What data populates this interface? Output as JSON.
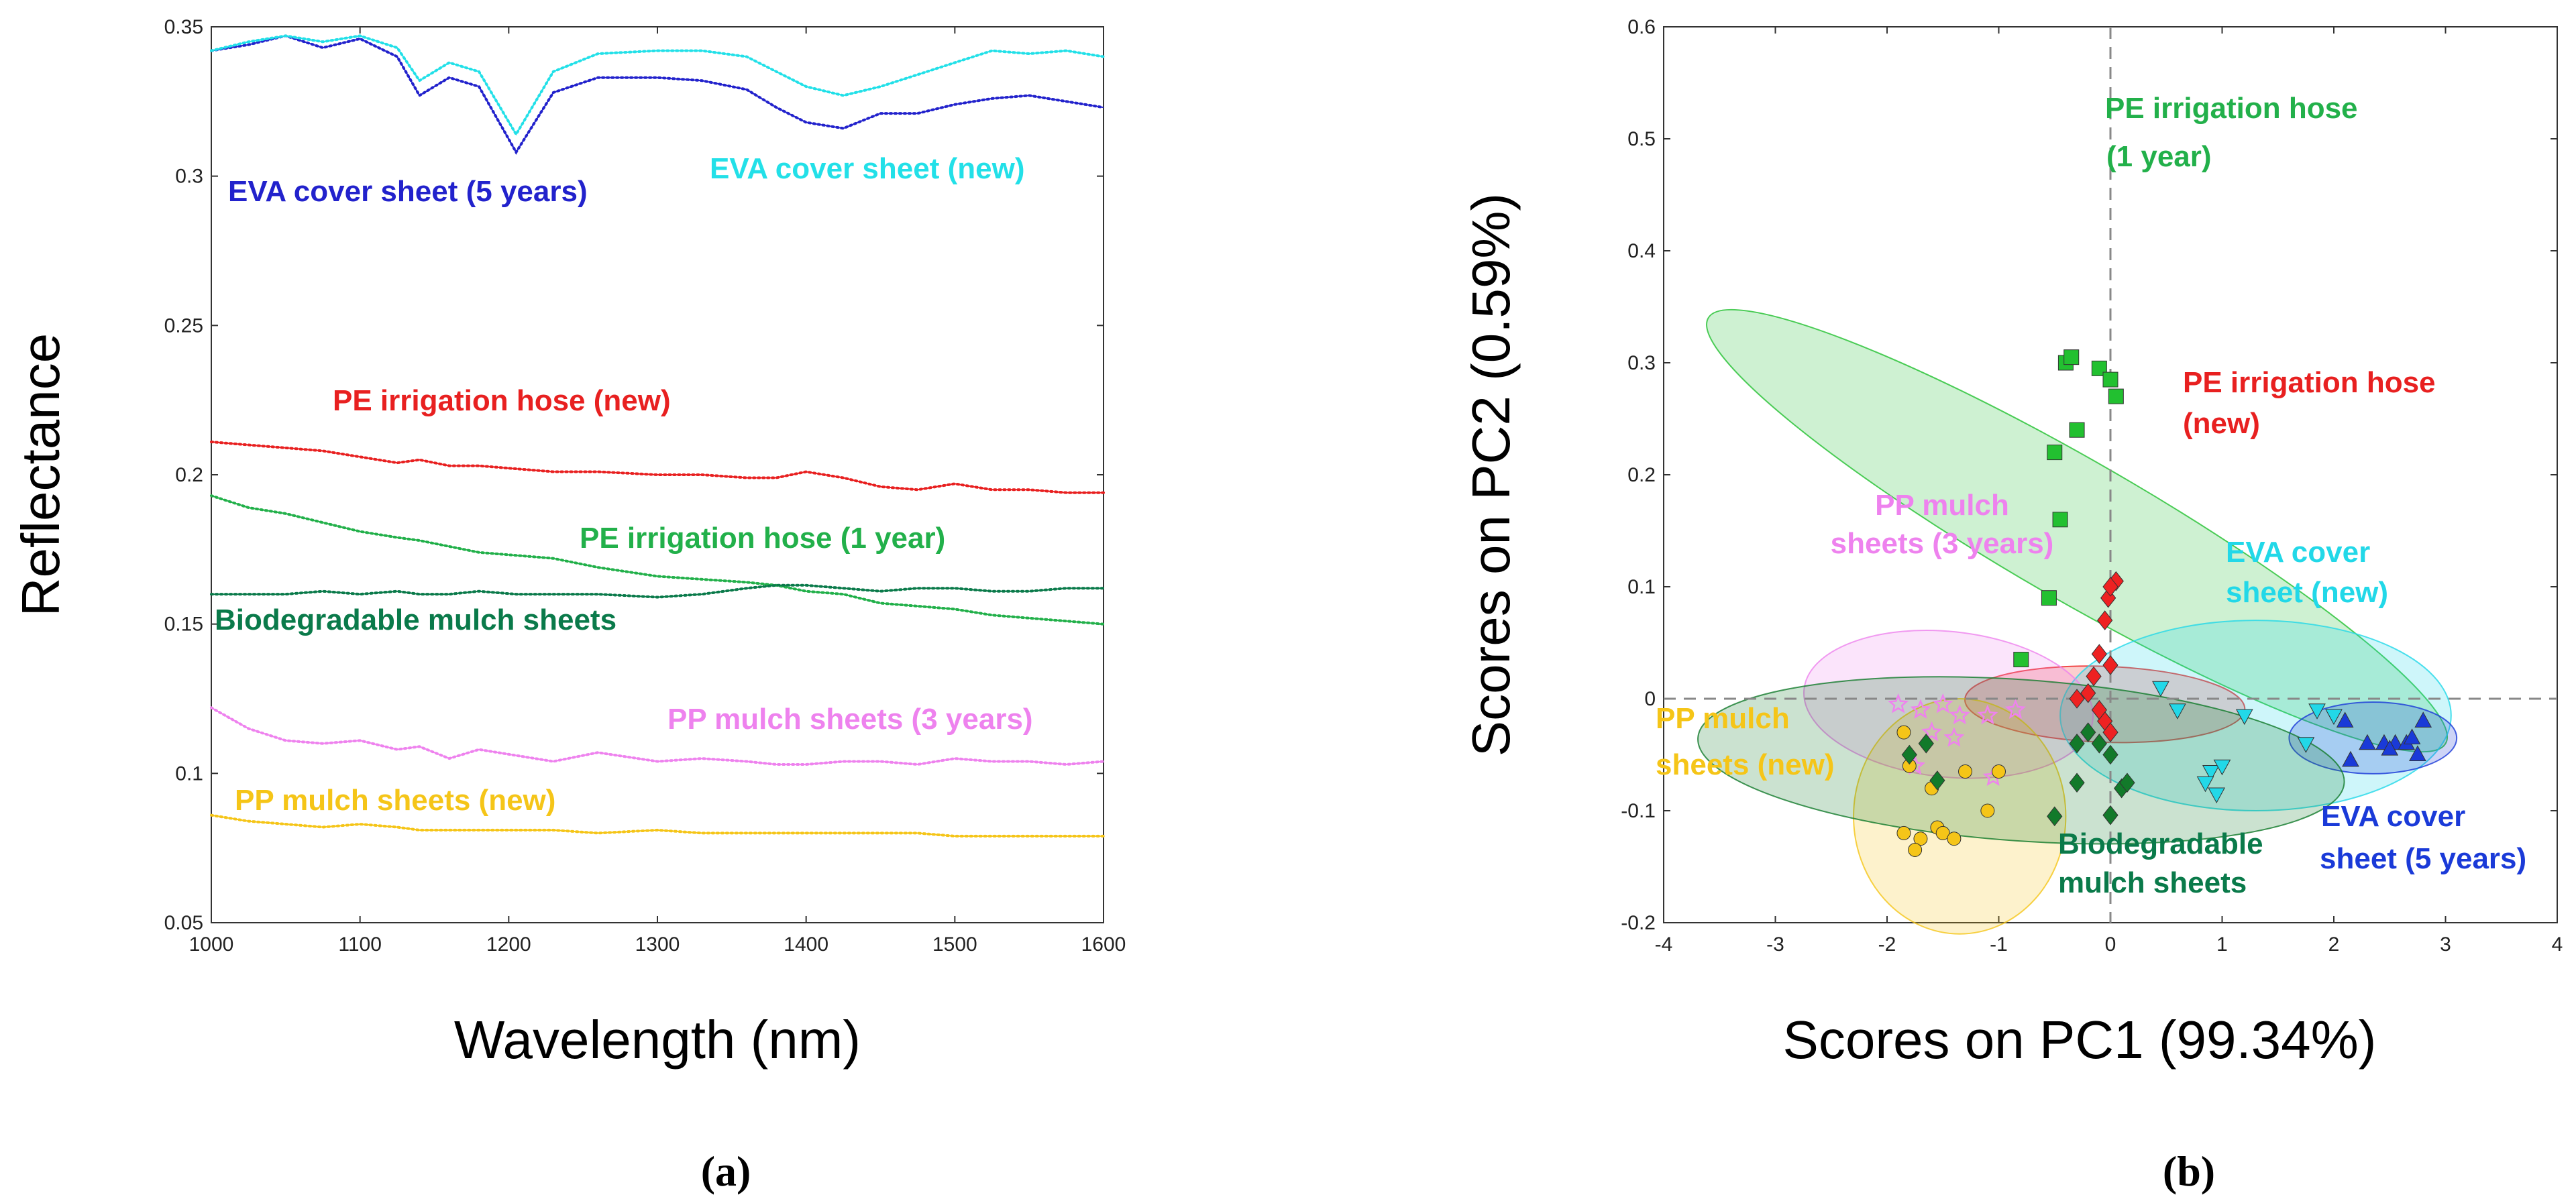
{
  "chart_data": [
    {
      "type": "line",
      "panel_label": "(a)",
      "xlabel": "Wavelength (nm)",
      "ylabel": "Reflectance",
      "xlim": [
        1000,
        1600
      ],
      "ylim": [
        0.05,
        0.35
      ],
      "xticks": [
        "1000",
        "1100",
        "1200",
        "1300",
        "1400",
        "1500",
        "1600"
      ],
      "yticks": [
        "0.05",
        "0.1",
        "0.15",
        "0.2",
        "0.25",
        "0.3",
        "0.35"
      ],
      "grid": false,
      "x": [
        1000,
        1025,
        1050,
        1075,
        1100,
        1125,
        1140,
        1160,
        1180,
        1205,
        1230,
        1260,
        1300,
        1330,
        1360,
        1380,
        1400,
        1425,
        1450,
        1475,
        1500,
        1525,
        1550,
        1575,
        1600
      ],
      "series": [
        {
          "name": "EVA cover sheet (5 years)",
          "color": "#2222cc",
          "values": [
            0.342,
            0.344,
            0.347,
            0.343,
            0.346,
            0.34,
            0.327,
            0.333,
            0.33,
            0.308,
            0.328,
            0.333,
            0.333,
            0.332,
            0.329,
            0.323,
            0.318,
            0.316,
            0.321,
            0.321,
            0.324,
            0.326,
            0.327,
            0.325,
            0.323
          ]
        },
        {
          "name": "EVA cover sheet (new)",
          "color": "#22e0e8",
          "values": [
            0.342,
            0.345,
            0.347,
            0.345,
            0.347,
            0.343,
            0.332,
            0.338,
            0.335,
            0.314,
            0.335,
            0.341,
            0.342,
            0.342,
            0.34,
            0.335,
            0.33,
            0.327,
            0.33,
            0.334,
            0.338,
            0.342,
            0.341,
            0.342,
            0.34
          ]
        },
        {
          "name": "PE irrigation hose (new)",
          "color": "#e82020",
          "values": [
            0.211,
            0.21,
            0.209,
            0.208,
            0.206,
            0.204,
            0.205,
            0.203,
            0.203,
            0.202,
            0.201,
            0.201,
            0.2,
            0.2,
            0.199,
            0.199,
            0.201,
            0.199,
            0.196,
            0.195,
            0.197,
            0.195,
            0.195,
            0.194,
            0.194
          ]
        },
        {
          "name": "PE irrigation hose (1 year)",
          "color": "#22b04a",
          "values": [
            0.193,
            0.189,
            0.187,
            0.184,
            0.181,
            0.179,
            0.178,
            0.176,
            0.174,
            0.173,
            0.172,
            0.169,
            0.166,
            0.165,
            0.164,
            0.163,
            0.161,
            0.16,
            0.157,
            0.156,
            0.155,
            0.153,
            0.152,
            0.151,
            0.15
          ]
        },
        {
          "name": "Biodegradable mulch sheets",
          "color": "#0a7a4a",
          "values": [
            0.16,
            0.16,
            0.16,
            0.161,
            0.16,
            0.161,
            0.16,
            0.16,
            0.161,
            0.16,
            0.16,
            0.16,
            0.159,
            0.16,
            0.162,
            0.163,
            0.163,
            0.162,
            0.161,
            0.162,
            0.162,
            0.161,
            0.161,
            0.162,
            0.162
          ]
        },
        {
          "name": "PP mulch sheets (3 years)",
          "color": "#ee82ee",
          "values": [
            0.122,
            0.115,
            0.111,
            0.11,
            0.111,
            0.108,
            0.109,
            0.105,
            0.108,
            0.106,
            0.104,
            0.107,
            0.104,
            0.105,
            0.104,
            0.103,
            0.103,
            0.104,
            0.104,
            0.103,
            0.105,
            0.104,
            0.104,
            0.103,
            0.104
          ]
        },
        {
          "name": "PP mulch sheets (new)",
          "color": "#f5c518",
          "values": [
            0.086,
            0.084,
            0.083,
            0.082,
            0.083,
            0.082,
            0.081,
            0.081,
            0.081,
            0.081,
            0.081,
            0.08,
            0.081,
            0.08,
            0.08,
            0.08,
            0.08,
            0.08,
            0.08,
            0.08,
            0.079,
            0.079,
            0.079,
            0.079,
            0.079
          ]
        }
      ],
      "labels": [
        {
          "text": "EVA cover sheet (5 years)",
          "color": "#2222cc"
        },
        {
          "text": "EVA cover sheet (new)",
          "color": "#22e0e8"
        },
        {
          "text": "PE irrigation hose (new)",
          "color": "#e82020"
        },
        {
          "text": "PE irrigation hose (1 year)",
          "color": "#22b04a"
        },
        {
          "text": "Biodegradable mulch sheets",
          "color": "#0a7a4a"
        },
        {
          "text": "PP mulch sheets (3 years)",
          "color": "#ee82ee"
        },
        {
          "text": "PP mulch sheets (new)",
          "color": "#f5c518"
        }
      ]
    },
    {
      "type": "scatter",
      "panel_label": "(b)",
      "xlabel": "Scores on PC1 (99.34%)",
      "ylabel": "Scores on PC2 (0.59%)",
      "xlim": [
        -4,
        4
      ],
      "ylim": [
        -0.2,
        0.6
      ],
      "xticks": [
        "-4",
        "-3",
        "-2",
        "-1",
        "0",
        "1",
        "2",
        "3",
        "4"
      ],
      "yticks": [
        "-0.2",
        "-0.1",
        "0",
        "0.1",
        "0.2",
        "0.3",
        "0.4",
        "0.5",
        "0.6"
      ],
      "grid": false,
      "reference_lines": {
        "x": 0,
        "y": 0
      },
      "groups": [
        {
          "name": "PE irrigation hose (1 year)",
          "color": "#22c030",
          "marker": "square",
          "ellipse": {
            "cx": -0.3,
            "cy": 0.15,
            "rx": 0.62,
            "ry": 0.38,
            "angle": 60
          },
          "points": [
            [
              -0.4,
              0.3
            ],
            [
              -0.35,
              0.305
            ],
            [
              -0.1,
              0.295
            ],
            [
              0.0,
              0.285
            ],
            [
              0.05,
              0.27
            ],
            [
              -0.3,
              0.24
            ],
            [
              -0.5,
              0.22
            ],
            [
              -0.45,
              0.16
            ],
            [
              -0.55,
              0.09
            ],
            [
              -0.8,
              0.035
            ]
          ]
        },
        {
          "name": "PE irrigation hose (new)",
          "color": "#ee2222",
          "marker": "diamond",
          "ellipse": {
            "cx": -0.05,
            "cy": -0.005,
            "rx": 0.34,
            "ry": 0.125,
            "angle": 88
          },
          "points": [
            [
              0.05,
              0.105
            ],
            [
              -0.02,
              0.09
            ],
            [
              0.0,
              0.1
            ],
            [
              -0.05,
              0.07
            ],
            [
              -0.1,
              0.04
            ],
            [
              0.0,
              0.03
            ],
            [
              -0.15,
              0.02
            ],
            [
              -0.3,
              0.0
            ],
            [
              -0.05,
              -0.02
            ],
            [
              0.0,
              -0.03
            ],
            [
              -0.1,
              -0.01
            ],
            [
              -0.2,
              0.005
            ]
          ]
        },
        {
          "name": "EVA cover sheet (new)",
          "color": "#22d8e8",
          "marker": "triangle-down",
          "ellipse": {
            "cx": 1.3,
            "cy": -0.015,
            "rx": 1.75,
            "ry": 0.085,
            "angle": 0
          },
          "points": [
            [
              0.45,
              0.01
            ],
            [
              0.6,
              -0.01
            ],
            [
              1.2,
              -0.015
            ],
            [
              1.85,
              -0.01
            ],
            [
              2.0,
              -0.015
            ],
            [
              1.75,
              -0.04
            ],
            [
              0.9,
              -0.065
            ],
            [
              0.85,
              -0.075
            ],
            [
              0.95,
              -0.085
            ],
            [
              1.0,
              -0.06
            ]
          ]
        },
        {
          "name": "EVA cover sheet (5 years)",
          "color": "#1a3ad8",
          "marker": "triangle-up",
          "ellipse": {
            "cx": 2.35,
            "cy": -0.035,
            "rx": 0.75,
            "ry": 0.032,
            "angle": 0
          },
          "points": [
            [
              2.1,
              -0.02
            ],
            [
              2.3,
              -0.04
            ],
            [
              2.45,
              -0.04
            ],
            [
              2.55,
              -0.04
            ],
            [
              2.65,
              -0.04
            ],
            [
              2.7,
              -0.035
            ],
            [
              2.8,
              -0.02
            ],
            [
              2.75,
              -0.05
            ],
            [
              2.15,
              -0.055
            ],
            [
              2.5,
              -0.045
            ]
          ]
        },
        {
          "name": "PP mulch sheets (3 years)",
          "color": "#ee82ee",
          "marker": "star",
          "ellipse": {
            "cx": -1.45,
            "cy": -0.005,
            "rx": 1.3,
            "ry": 0.065,
            "angle": -6
          },
          "points": [
            [
              -1.9,
              -0.005
            ],
            [
              -1.7,
              -0.01
            ],
            [
              -1.5,
              -0.005
            ],
            [
              -1.35,
              -0.015
            ],
            [
              -1.1,
              -0.015
            ],
            [
              -0.85,
              -0.01
            ],
            [
              -1.6,
              -0.03
            ],
            [
              -1.4,
              -0.035
            ],
            [
              -1.05,
              -0.07
            ],
            [
              -1.75,
              -0.06
            ]
          ]
        },
        {
          "name": "PP mulch sheets (new)",
          "color": "#f5c518",
          "marker": "circle",
          "ellipse": {
            "cx": -1.35,
            "cy": -0.105,
            "rx": 0.95,
            "ry": 0.105,
            "angle": 0
          },
          "points": [
            [
              -1.85,
              -0.03
            ],
            [
              -1.8,
              -0.06
            ],
            [
              -1.6,
              -0.08
            ],
            [
              -1.3,
              -0.065
            ],
            [
              -1.0,
              -0.065
            ],
            [
              -1.1,
              -0.1
            ],
            [
              -1.55,
              -0.115
            ],
            [
              -1.5,
              -0.12
            ],
            [
              -1.7,
              -0.125
            ],
            [
              -1.85,
              -0.12
            ],
            [
              -1.75,
              -0.135
            ],
            [
              -1.4,
              -0.125
            ]
          ]
        },
        {
          "name": "Biodegradable mulch sheets",
          "color": "#127a2a",
          "marker": "diamond",
          "ellipse": {
            "cx": -0.8,
            "cy": -0.055,
            "rx": 2.9,
            "ry": 0.072,
            "angle": -4
          },
          "points": [
            [
              -1.8,
              -0.05
            ],
            [
              -1.65,
              -0.04
            ],
            [
              -1.55,
              -0.073
            ],
            [
              -0.5,
              -0.105
            ],
            [
              -0.3,
              -0.075
            ],
            [
              -0.2,
              -0.03
            ],
            [
              -0.1,
              -0.04
            ],
            [
              0.0,
              -0.05
            ],
            [
              0.0,
              -0.104
            ],
            [
              0.1,
              -0.08
            ],
            [
              0.15,
              -0.075
            ],
            [
              -0.3,
              -0.04
            ]
          ]
        }
      ],
      "labels": [
        {
          "text": "PE irrigation hose",
          "color": "#22b04a"
        },
        {
          "text": "(1 year)",
          "color": "#22b04a"
        },
        {
          "text": "PE irrigation hose",
          "color": "#e82020"
        },
        {
          "text": "(new)",
          "color": "#e82020"
        },
        {
          "text": "PP mulch",
          "color": "#ee82ee"
        },
        {
          "text": "sheets (3 years)",
          "color": "#ee82ee"
        },
        {
          "text": "EVA cover",
          "color": "#22d8e8"
        },
        {
          "text": "sheet (new)",
          "color": "#22d8e8"
        },
        {
          "text": "PP mulch",
          "color": "#f5c518"
        },
        {
          "text": "sheets (new)",
          "color": "#f5c518"
        },
        {
          "text": "Biodegradable",
          "color": "#0a7a4a"
        },
        {
          "text": "mulch sheets",
          "color": "#0a7a4a"
        },
        {
          "text": "EVA cover",
          "color": "#1a3ad8"
        },
        {
          "text": "sheet (5 years)",
          "color": "#1a3ad8"
        }
      ]
    }
  ]
}
